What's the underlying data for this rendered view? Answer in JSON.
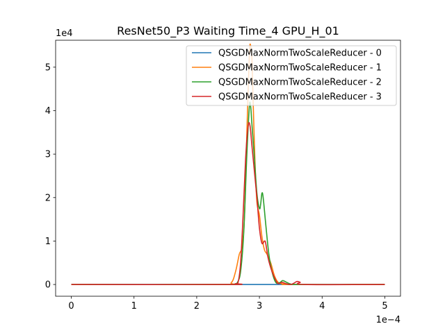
{
  "chart_data": {
    "type": "line",
    "title": "ResNet50_P3 Waiting Time_4 GPU_H_01",
    "xlabel": "",
    "ylabel": "",
    "x_offset_label": "1e−4",
    "y_offset_label": "1e4",
    "xlim": [
      -0.25,
      5.25
    ],
    "ylim": [
      -0.27,
      5.62
    ],
    "x_ticks": [
      0,
      1,
      2,
      3,
      4,
      5
    ],
    "x_tick_labels": [
      "0",
      "1",
      "2",
      "3",
      "4",
      "5"
    ],
    "y_ticks": [
      0,
      1,
      2,
      3,
      4,
      5
    ],
    "y_tick_labels": [
      "0",
      "1",
      "2",
      "3",
      "4",
      "5"
    ],
    "grid": false,
    "legend_position": "top-right",
    "series": [
      {
        "name": "QSGDMaxNormTwoScaleReducer - 0",
        "color": "#1f77b4",
        "x": [
          0,
          2.0,
          2.6,
          2.8,
          3.0,
          3.4,
          4.0,
          5.0
        ],
        "y": [
          0,
          0,
          0,
          0,
          0,
          0,
          0,
          0
        ]
      },
      {
        "name": "QSGDMaxNormTwoScaleReducer - 1",
        "color": "#ff7f0e",
        "x": [
          0,
          2.4,
          2.55,
          2.62,
          2.68,
          2.72,
          2.76,
          2.8,
          2.84,
          2.86,
          2.88,
          2.9,
          2.93,
          2.96,
          3.0,
          3.04,
          3.08,
          3.12,
          3.18,
          3.24,
          3.3,
          3.4,
          3.5,
          5.0
        ],
        "y": [
          0,
          0,
          0.04,
          0.3,
          0.7,
          0.85,
          1.5,
          3.5,
          5.3,
          5.5,
          5.2,
          4.2,
          2.8,
          1.9,
          1.6,
          1.1,
          0.8,
          0.7,
          0.5,
          0.2,
          0.05,
          0.01,
          0,
          0
        ]
      },
      {
        "name": "QSGDMaxNormTwoScaleReducer - 2",
        "color": "#2ca02c",
        "x": [
          0,
          2.5,
          2.6,
          2.65,
          2.7,
          2.75,
          2.8,
          2.84,
          2.86,
          2.88,
          2.92,
          2.96,
          3.0,
          3.02,
          3.04,
          3.06,
          3.1,
          3.15,
          3.2,
          3.26,
          3.32,
          3.37,
          3.42,
          3.5,
          3.6,
          5.0
        ],
        "y": [
          0,
          0,
          0.01,
          0.05,
          0.3,
          1.2,
          3.0,
          4.1,
          4.1,
          3.7,
          2.9,
          2.1,
          1.75,
          1.85,
          2.1,
          2.0,
          1.4,
          0.7,
          0.3,
          0.05,
          0.04,
          0.09,
          0.06,
          0.01,
          0,
          0
        ]
      },
      {
        "name": "QSGDMaxNormTwoScaleReducer - 3",
        "color": "#d62728",
        "x": [
          0,
          2.5,
          2.62,
          2.66,
          2.7,
          2.74,
          2.78,
          2.82,
          2.85,
          2.88,
          2.92,
          2.96,
          3.0,
          3.04,
          3.08,
          3.1,
          3.14,
          3.2,
          3.26,
          3.3,
          3.36,
          3.42,
          3.5,
          3.55,
          3.6,
          3.65,
          3.72,
          5.0
        ],
        "y": [
          0,
          0,
          0.02,
          0.05,
          0.5,
          1.6,
          2.9,
          3.65,
          3.65,
          3.2,
          2.6,
          2.0,
          1.3,
          0.95,
          1.0,
          0.95,
          0.6,
          0.3,
          0.1,
          0.02,
          0.05,
          0.02,
          0,
          0.03,
          0.07,
          0.05,
          0,
          0
        ]
      }
    ]
  }
}
